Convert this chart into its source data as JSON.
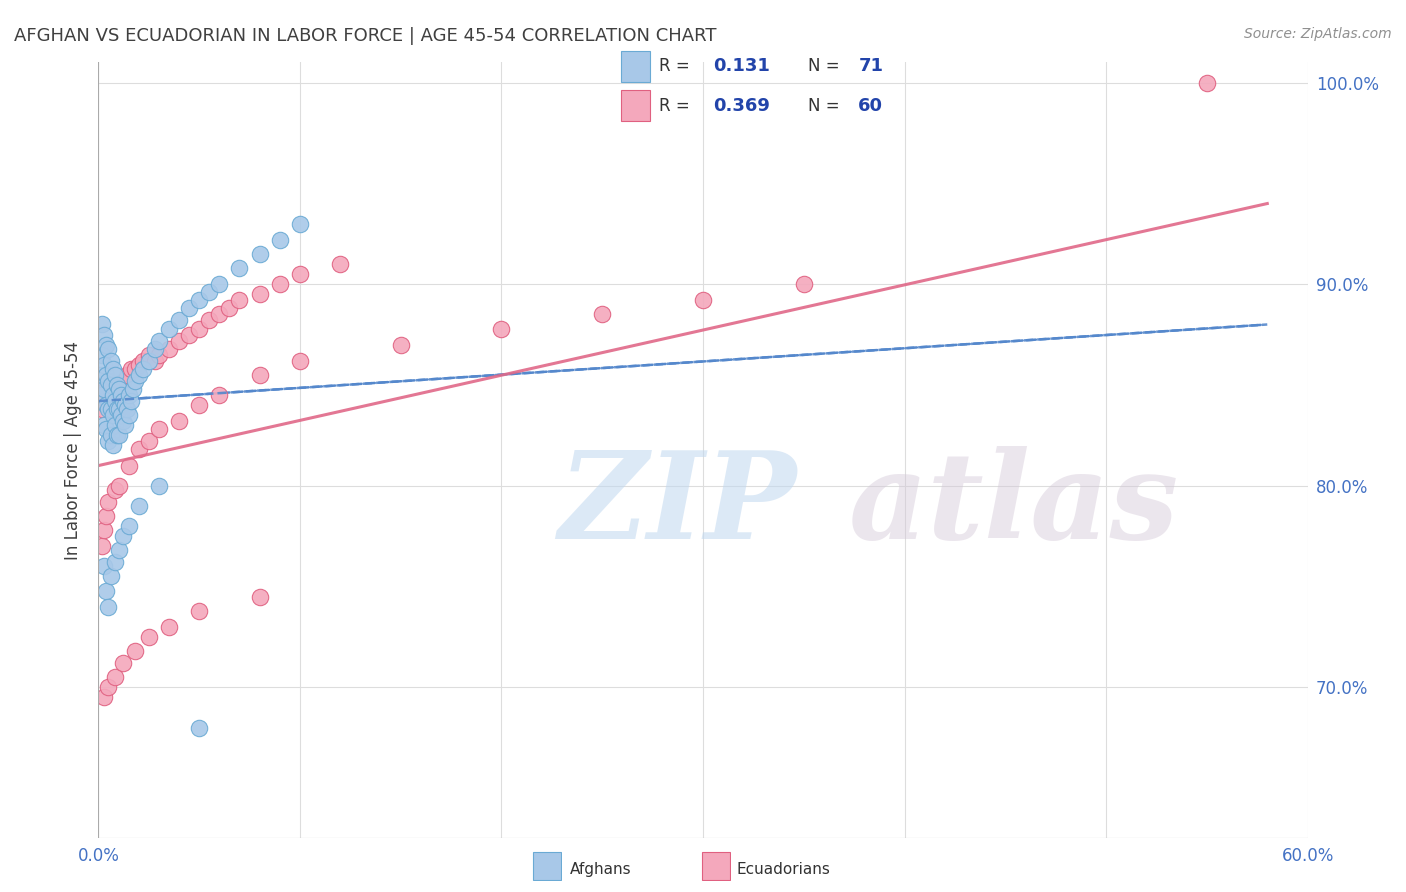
{
  "title": "AFGHAN VS ECUADORIAN IN LABOR FORCE | AGE 45-54 CORRELATION CHART",
  "source": "Source: ZipAtlas.com",
  "ylabel": "In Labor Force | Age 45-54",
  "xlim": [
    0.0,
    0.6
  ],
  "ylim": [
    0.625,
    1.01
  ],
  "afghan_color": "#a8c8e8",
  "afghan_edge": "#6aaad4",
  "ecuadorian_color": "#f4a8bc",
  "ecuadorian_edge": "#e06080",
  "trend_afghan_color": "#5588cc",
  "trend_ecuadorian_color": "#e06888",
  "R_afghan": 0.131,
  "N_afghan": 71,
  "R_ecuadorian": 0.369,
  "N_ecuadorian": 60,
  "watermark_color": "#d8eaf8",
  "legend_text_color": "#2244aa",
  "title_color": "#404040",
  "source_color": "#909090",
  "grid_color": "#dddddd",
  "ytick_color": "#4472c4",
  "xtick_color": "#4472c4",
  "afghan_x": [
    0.001,
    0.002,
    0.002,
    0.002,
    0.003,
    0.003,
    0.003,
    0.003,
    0.004,
    0.004,
    0.004,
    0.004,
    0.005,
    0.005,
    0.005,
    0.005,
    0.006,
    0.006,
    0.006,
    0.006,
    0.007,
    0.007,
    0.007,
    0.007,
    0.008,
    0.008,
    0.008,
    0.009,
    0.009,
    0.009,
    0.01,
    0.01,
    0.01,
    0.011,
    0.011,
    0.012,
    0.012,
    0.013,
    0.013,
    0.014,
    0.015,
    0.015,
    0.016,
    0.017,
    0.018,
    0.02,
    0.022,
    0.025,
    0.028,
    0.03,
    0.035,
    0.04,
    0.045,
    0.05,
    0.055,
    0.06,
    0.07,
    0.08,
    0.09,
    0.1,
    0.003,
    0.004,
    0.005,
    0.006,
    0.008,
    0.01,
    0.012,
    0.015,
    0.02,
    0.03,
    0.05
  ],
  "afghan_y": [
    0.855,
    0.88,
    0.865,
    0.845,
    0.875,
    0.86,
    0.848,
    0.83,
    0.87,
    0.855,
    0.84,
    0.828,
    0.868,
    0.852,
    0.838,
    0.822,
    0.862,
    0.85,
    0.838,
    0.825,
    0.858,
    0.845,
    0.835,
    0.82,
    0.855,
    0.842,
    0.83,
    0.85,
    0.838,
    0.825,
    0.848,
    0.838,
    0.825,
    0.845,
    0.835,
    0.842,
    0.832,
    0.84,
    0.83,
    0.838,
    0.845,
    0.835,
    0.842,
    0.848,
    0.852,
    0.855,
    0.858,
    0.862,
    0.868,
    0.872,
    0.878,
    0.882,
    0.888,
    0.892,
    0.896,
    0.9,
    0.908,
    0.915,
    0.922,
    0.93,
    0.76,
    0.748,
    0.74,
    0.755,
    0.762,
    0.768,
    0.775,
    0.78,
    0.79,
    0.8,
    0.68
  ],
  "ecuadorian_x": [
    0.001,
    0.002,
    0.003,
    0.004,
    0.005,
    0.006,
    0.007,
    0.008,
    0.01,
    0.012,
    0.014,
    0.016,
    0.018,
    0.02,
    0.022,
    0.025,
    0.028,
    0.03,
    0.035,
    0.04,
    0.045,
    0.05,
    0.055,
    0.06,
    0.065,
    0.07,
    0.08,
    0.09,
    0.1,
    0.12,
    0.002,
    0.003,
    0.004,
    0.005,
    0.008,
    0.01,
    0.015,
    0.02,
    0.025,
    0.03,
    0.04,
    0.05,
    0.06,
    0.08,
    0.1,
    0.15,
    0.2,
    0.25,
    0.3,
    0.35,
    0.003,
    0.005,
    0.008,
    0.012,
    0.018,
    0.025,
    0.035,
    0.05,
    0.08,
    0.55
  ],
  "ecuadorian_y": [
    0.845,
    0.838,
    0.842,
    0.848,
    0.84,
    0.845,
    0.838,
    0.845,
    0.848,
    0.852,
    0.855,
    0.858,
    0.858,
    0.86,
    0.862,
    0.865,
    0.862,
    0.865,
    0.868,
    0.872,
    0.875,
    0.878,
    0.882,
    0.885,
    0.888,
    0.892,
    0.895,
    0.9,
    0.905,
    0.91,
    0.77,
    0.778,
    0.785,
    0.792,
    0.798,
    0.8,
    0.81,
    0.818,
    0.822,
    0.828,
    0.832,
    0.84,
    0.845,
    0.855,
    0.862,
    0.87,
    0.878,
    0.885,
    0.892,
    0.9,
    0.695,
    0.7,
    0.705,
    0.712,
    0.718,
    0.725,
    0.73,
    0.738,
    0.745,
    1.0
  ],
  "trend_af_x0": 0.0,
  "trend_af_x1": 0.58,
  "trend_af_y0": 0.842,
  "trend_af_y1": 0.88,
  "trend_ec_x0": 0.0,
  "trend_ec_x1": 0.58,
  "trend_ec_y0": 0.81,
  "trend_ec_y1": 0.94
}
